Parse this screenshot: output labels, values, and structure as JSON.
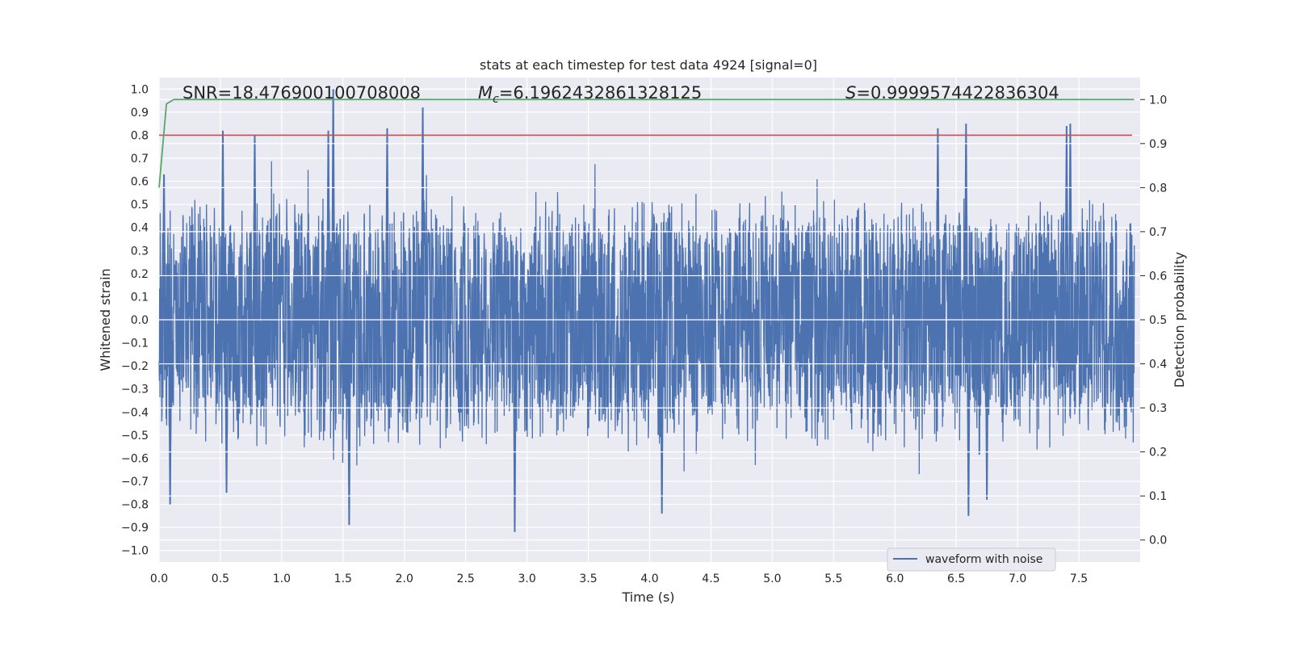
{
  "chart_data": {
    "type": "line",
    "title": "stats at each timestep for test data 4924 [signal=0]",
    "xlabel": "Time (s)",
    "ylabel": "Whitened strain",
    "ylabel_right": "Detection probability",
    "xlim": [
      0.0,
      8.0
    ],
    "ylim": [
      -1.05,
      1.05
    ],
    "ylim_right": [
      -0.05,
      1.05
    ],
    "xticks": [
      "0.0",
      "0.5",
      "1.0",
      "1.5",
      "2.0",
      "2.5",
      "3.0",
      "3.5",
      "4.0",
      "4.5",
      "5.0",
      "5.5",
      "6.0",
      "6.5",
      "7.0",
      "7.5"
    ],
    "yticks": [
      "1.0",
      "0.9",
      "0.8",
      "0.7",
      "0.6",
      "0.5",
      "0.4",
      "0.3",
      "0.2",
      "0.1",
      "0.0",
      "−0.1",
      "−0.2",
      "−0.3",
      "−0.4",
      "−0.5",
      "−0.6",
      "−0.7",
      "−0.8",
      "−0.9",
      "−1.0"
    ],
    "yticks_right": [
      "1.0",
      "0.9",
      "0.8",
      "0.7",
      "0.6",
      "0.5",
      "0.4",
      "0.3",
      "0.2",
      "0.1",
      "0.0"
    ],
    "annotations": {
      "snr": "SNR=18.476900100708008",
      "mc_symbol": "M",
      "mc_subscript": "c",
      "mc_value": "=6.1962432861328125",
      "s_symbol": "S",
      "s_value": "=0.9999574422836304"
    },
    "legend": {
      "label": "waveform with noise",
      "position": "lower-right"
    },
    "threshold_line": {
      "y": 0.8,
      "color": "#c44e52"
    },
    "waveform": {
      "name": "waveform with noise",
      "color": "#4c72b0",
      "duration_s": 8.0,
      "envelope_typical": 0.4,
      "spikes": [
        {
          "t": 0.04,
          "v": 0.63
        },
        {
          "t": 0.09,
          "v": -0.8
        },
        {
          "t": 0.52,
          "v": 0.82
        },
        {
          "t": 0.55,
          "v": -0.75
        },
        {
          "t": 0.78,
          "v": 0.8
        },
        {
          "t": 1.38,
          "v": 0.82
        },
        {
          "t": 1.42,
          "v": 1.0
        },
        {
          "t": 1.55,
          "v": -0.89
        },
        {
          "t": 1.86,
          "v": 0.83
        },
        {
          "t": 2.15,
          "v": 0.92
        },
        {
          "t": 2.9,
          "v": -0.92
        },
        {
          "t": 4.1,
          "v": -0.84
        },
        {
          "t": 6.35,
          "v": 0.83
        },
        {
          "t": 6.58,
          "v": 0.85
        },
        {
          "t": 6.6,
          "v": -0.85
        },
        {
          "t": 6.75,
          "v": -0.78
        },
        {
          "t": 7.4,
          "v": 0.84
        },
        {
          "t": 7.43,
          "v": 0.85
        }
      ]
    },
    "probability": {
      "name": "detection probability",
      "color": "#55a868",
      "x": [
        0.0,
        0.06,
        0.12,
        0.2,
        1.0,
        2.0,
        3.0,
        4.0,
        5.0,
        6.0,
        7.0,
        7.95
      ],
      "y": [
        0.8,
        0.99,
        1.0,
        1.0,
        1.0,
        1.0,
        1.0,
        1.0,
        1.0,
        1.0,
        1.0,
        1.0
      ]
    }
  },
  "colors": {
    "axes_bg": "#eaeaf2",
    "grid": "#ffffff",
    "text": "#262626"
  }
}
